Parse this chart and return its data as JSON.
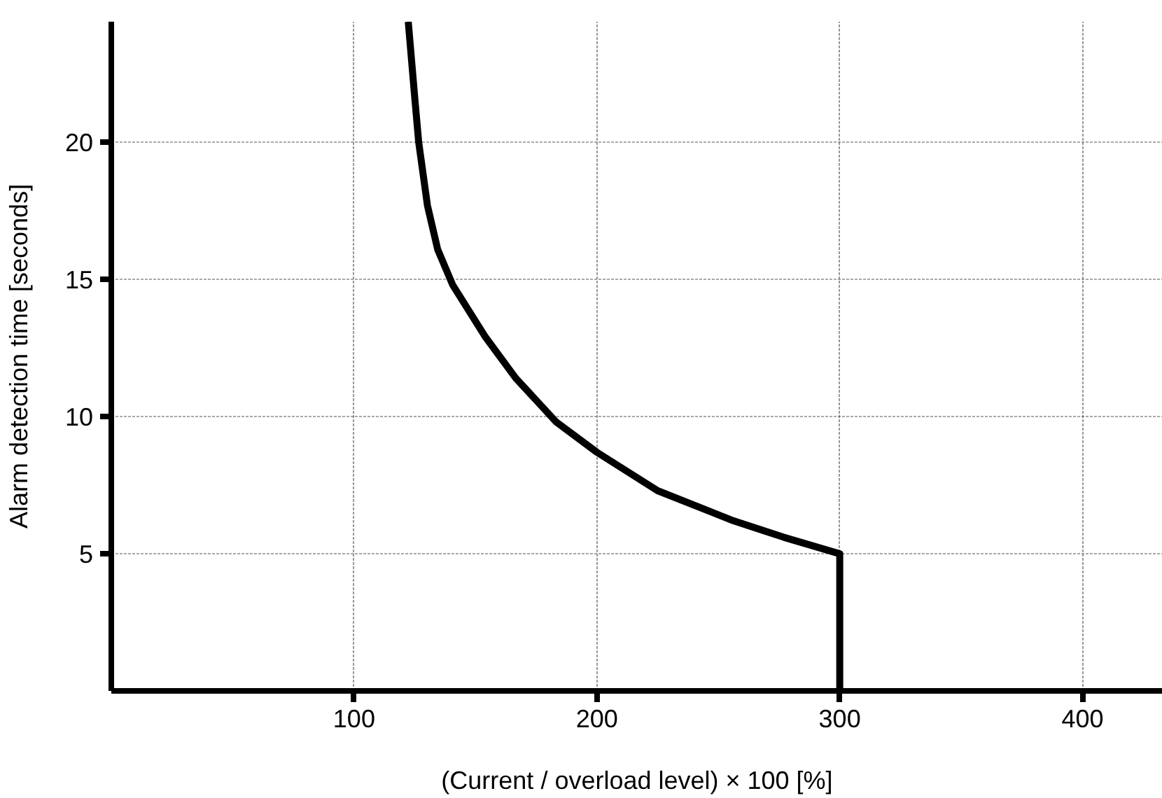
{
  "chart_data": {
    "type": "line",
    "xlabel": "(Current / overload level) × 100 [%]",
    "ylabel": "Alarm detection time [seconds]",
    "xlim": [
      0,
      433
    ],
    "ylim": [
      0,
      24.4
    ],
    "xticks": [
      100,
      200,
      300,
      400
    ],
    "yticks": [
      5,
      10,
      15,
      20
    ],
    "grid": true,
    "series": [
      {
        "color": "#000000",
        "line_style": "solid",
        "x": [
          122.3,
          125.0,
          126.6,
          130.2,
          134.4,
          140.6,
          154.1,
          166.6,
          183.3,
          200,
          225,
          256.3,
          277,
          300,
          300
        ],
        "values": [
          24.4,
          21.6,
          20.0,
          17.7,
          16.1,
          14.8,
          12.9,
          11.4,
          9.8,
          8.7,
          7.3,
          6.2,
          5.6,
          5,
          0
        ]
      }
    ]
  }
}
